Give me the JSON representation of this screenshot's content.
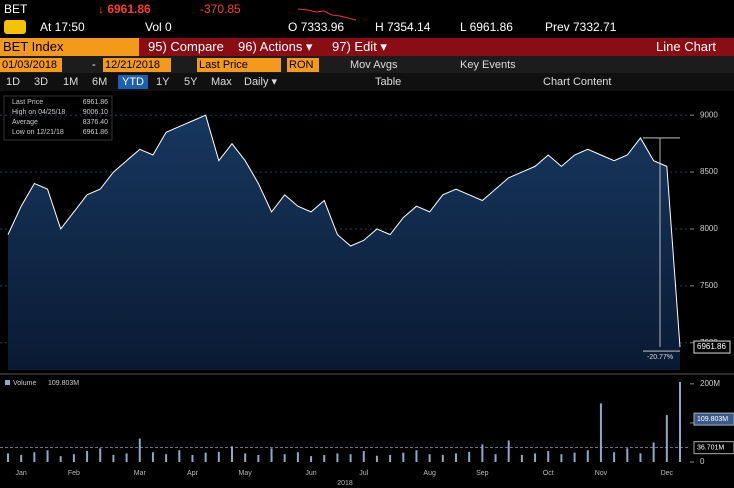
{
  "header": {
    "ticker": "BET",
    "price": "↓ 6961.86",
    "change": "-370.85",
    "time": "At 17:50",
    "volume": "Vol 0",
    "open": "O 7333.96",
    "high": "H 7354.14",
    "low": "L 6961.86",
    "prev": "Prev 7332.71"
  },
  "menu": {
    "security": "BET Index",
    "items": [
      "95) Compare",
      "96) Actions ▾",
      "97) Edit ▾"
    ],
    "view": "Line Chart"
  },
  "controls": {
    "start": "01/03/2018",
    "dash": "-",
    "end": "12/21/2018",
    "field": "Last Price",
    "currency": "RON",
    "mov_avgs": "Mov Avgs",
    "key_events": "Key Events"
  },
  "tabs": [
    "1D",
    "3D",
    "1M",
    "6M",
    "YTD",
    "1Y",
    "5Y",
    "Max",
    "Daily ▾",
    "Table",
    "Chart Content"
  ],
  "legend": [
    [
      "Last Price",
      "6961.86"
    ],
    [
      "High on 04/25/18",
      "9006.10"
    ],
    [
      "Average",
      "8376.40"
    ],
    [
      "Low on 12/21/18",
      "6961.86"
    ]
  ],
  "chart_data": [
    {
      "type": "area",
      "x_label": "2018",
      "categories": [
        null,
        "Jan",
        null,
        null,
        null,
        "Feb",
        null,
        null,
        null,
        null,
        "Mar",
        null,
        null,
        null,
        "Apr",
        null,
        null,
        null,
        "May",
        null,
        null,
        null,
        null,
        "Jun",
        null,
        null,
        null,
        "Jul",
        null,
        null,
        null,
        null,
        "Aug",
        null,
        null,
        null,
        "Sep",
        null,
        null,
        null,
        null,
        "Oct",
        null,
        null,
        null,
        "Nov",
        null,
        null,
        null,
        null,
        "Dec",
        null
      ],
      "series": [
        {
          "name": "Last Price",
          "color": "#ffffff",
          "values": [
            7950,
            8200,
            8400,
            8350,
            8000,
            8150,
            8300,
            8350,
            8500,
            8600,
            8700,
            8650,
            8850,
            8900,
            8950,
            9000,
            8600,
            8750,
            8600,
            8400,
            8150,
            8300,
            8200,
            8150,
            8250,
            7950,
            7850,
            7900,
            8000,
            7950,
            8100,
            8200,
            8150,
            8300,
            8350,
            8300,
            8250,
            8350,
            8450,
            8500,
            8550,
            8650,
            8550,
            8650,
            8700,
            8650,
            8600,
            8650,
            8800,
            8600,
            8550,
            6961.86
          ]
        }
      ],
      "ylim": [
        6760,
        9160
      ],
      "yticks": [
        7000,
        7500,
        8000,
        8500,
        9000
      ],
      "grid": true,
      "annotations": [
        {
          "value": 6961.86,
          "label": "6961.86"
        },
        {
          "value": -20.77,
          "label": "-20.77%"
        }
      ]
    },
    {
      "type": "bar",
      "series": [
        {
          "name": "Volume",
          "color": "#8fa7c8",
          "values": [
            22,
            18,
            25,
            30,
            15,
            20,
            28,
            35,
            18,
            22,
            60,
            25,
            20,
            30,
            18,
            24,
            26,
            40,
            22,
            18,
            35,
            20,
            25,
            15,
            18,
            22,
            20,
            28,
            16,
            18,
            24,
            30,
            20,
            18,
            22,
            26,
            45,
            20,
            55,
            18,
            22,
            28,
            20,
            24,
            30,
            150,
            25,
            35,
            22,
            50,
            120,
            205
          ]
        }
      ],
      "ylim": [
        0,
        215
      ],
      "yticks": [
        0,
        {
          "value": 100,
          "label": "100M"
        },
        {
          "value": 200,
          "label": "200M"
        }
      ],
      "annotations": [
        {
          "value": 109.803,
          "label": "109.803M"
        },
        {
          "value": 36.701,
          "label": "36.701M"
        }
      ]
    }
  ]
}
